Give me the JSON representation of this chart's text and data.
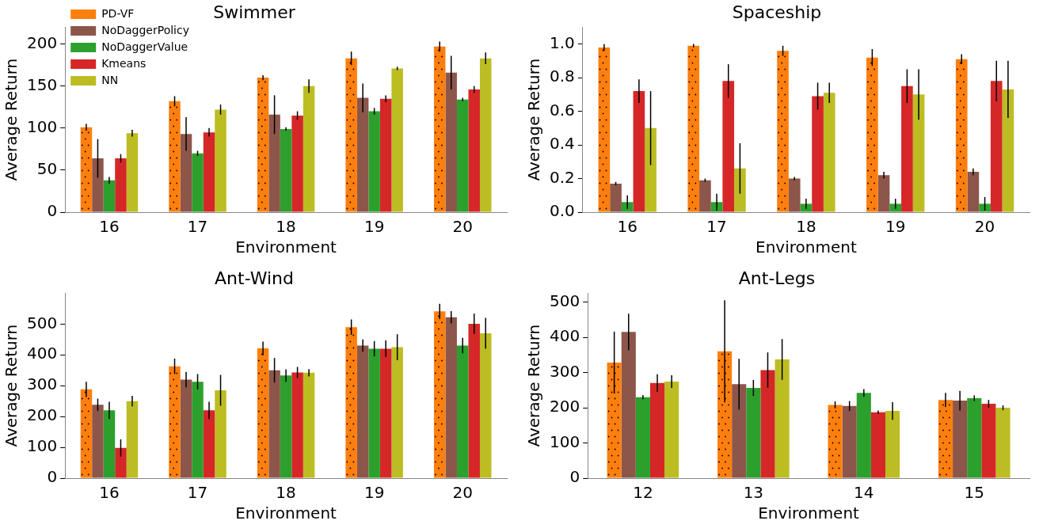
{
  "chart_data": [
    {
      "type": "bar",
      "title": "Swimmer",
      "xlabel": "Environment",
      "ylabel": "Average Return",
      "categories": [
        "16",
        "17",
        "18",
        "19",
        "20"
      ],
      "ylim": [
        0,
        220
      ],
      "yticks": [
        0,
        50,
        100,
        150,
        200
      ],
      "grid": false,
      "legend": "top left",
      "series": [
        {
          "name": "PD-VF",
          "color": "#ff7f0e",
          "values": [
            101,
            132,
            160,
            183,
            197
          ],
          "errors": [
            4,
            6,
            3,
            8,
            6
          ]
        },
        {
          "name": "NoDaggerPolicy",
          "color": "#8c564b",
          "values": [
            64,
            93,
            116,
            136,
            166
          ],
          "errors": [
            23,
            20,
            23,
            17,
            20
          ]
        },
        {
          "name": "NoDaggerValue",
          "color": "#2ca02c",
          "values": [
            38,
            70,
            99,
            120,
            134
          ],
          "errors": [
            4,
            3,
            2,
            4,
            2
          ]
        },
        {
          "name": "Kmeans",
          "color": "#d62728",
          "values": [
            64,
            95,
            115,
            135,
            146
          ],
          "errors": [
            5,
            5,
            5,
            4,
            4
          ]
        },
        {
          "name": "NN",
          "color": "#bcbd22",
          "values": [
            94,
            122,
            150,
            171,
            183
          ],
          "errors": [
            4,
            6,
            8,
            2,
            7
          ]
        }
      ]
    },
    {
      "type": "bar",
      "title": "Spaceship",
      "xlabel": "Environment",
      "ylabel": "Average Return",
      "categories": [
        "16",
        "17",
        "18",
        "19",
        "20"
      ],
      "ylim": [
        0,
        1.1
      ],
      "yticks": [
        {
          "value": 0,
          "label": "0.0"
        },
        {
          "value": 0.2,
          "label": "0.2"
        },
        {
          "value": 0.4,
          "label": "0.4"
        },
        {
          "value": 0.6,
          "label": "0.6"
        },
        {
          "value": 0.8,
          "label": "0.8"
        },
        {
          "value": 1,
          "label": "1.0"
        }
      ],
      "grid": false,
      "series": [
        {
          "color": "#ff7f0e",
          "values": [
            0.98,
            0.99,
            0.96,
            0.92,
            0.91
          ],
          "errors": [
            0.02,
            0.01,
            0.03,
            0.05,
            0.03
          ]
        },
        {
          "color": "#8c564b",
          "values": [
            0.17,
            0.19,
            0.2,
            0.22,
            0.24
          ],
          "errors": [
            0.01,
            0.01,
            0.01,
            0.02,
            0.02
          ]
        },
        {
          "color": "#2ca02c",
          "values": [
            0.06,
            0.06,
            0.05,
            0.05,
            0.05
          ],
          "errors": [
            0.04,
            0.05,
            0.03,
            0.03,
            0.04
          ]
        },
        {
          "color": "#d62728",
          "values": [
            0.72,
            0.78,
            0.69,
            0.75,
            0.78
          ],
          "errors": [
            0.07,
            0.1,
            0.08,
            0.1,
            0.12
          ]
        },
        {
          "color": "#bcbd22",
          "values": [
            0.5,
            0.26,
            0.71,
            0.7,
            0.73
          ],
          "errors": [
            0.22,
            0.15,
            0.06,
            0.15,
            0.17
          ]
        }
      ]
    },
    {
      "type": "bar",
      "title": "Ant-Wind",
      "xlabel": "Environment",
      "ylabel": "Average Return",
      "categories": [
        "16",
        "17",
        "18",
        "19",
        "20"
      ],
      "ylim": [
        0,
        600
      ],
      "yticks": [
        0,
        100,
        200,
        300,
        400,
        500
      ],
      "grid": false,
      "series": [
        {
          "color": "#ff7f0e",
          "values": [
            288,
            363,
            421,
            490,
            541
          ],
          "errors": [
            25,
            25,
            22,
            25,
            25
          ]
        },
        {
          "color": "#8c564b",
          "values": [
            238,
            320,
            350,
            430,
            522
          ],
          "errors": [
            20,
            25,
            40,
            20,
            20
          ]
        },
        {
          "color": "#2ca02c",
          "values": [
            220,
            313,
            333,
            420,
            430
          ],
          "errors": [
            28,
            25,
            20,
            25,
            25
          ]
        },
        {
          "color": "#d62728",
          "values": [
            98,
            220,
            343,
            420,
            501
          ],
          "errors": [
            28,
            28,
            18,
            27,
            33
          ]
        },
        {
          "color": "#bcbd22",
          "values": [
            250,
            285,
            342,
            425,
            470
          ],
          "errors": [
            17,
            50,
            12,
            42,
            50
          ]
        }
      ]
    },
    {
      "type": "bar",
      "title": "Ant-Legs",
      "xlabel": "Environment",
      "ylabel": "Average Return",
      "categories": [
        "12",
        "13",
        "14",
        "15"
      ],
      "ylim": [
        0,
        525
      ],
      "yticks": [
        0,
        100,
        200,
        300,
        400,
        500
      ],
      "grid": false,
      "series": [
        {
          "color": "#ff7f0e",
          "values": [
            328,
            360,
            208,
            222
          ],
          "errors": [
            88,
            145,
            10,
            20
          ]
        },
        {
          "color": "#8c564b",
          "values": [
            415,
            267,
            205,
            220
          ],
          "errors": [
            52,
            72,
            14,
            28
          ]
        },
        {
          "color": "#2ca02c",
          "values": [
            230,
            256,
            242,
            227
          ],
          "errors": [
            6,
            23,
            11,
            8
          ]
        },
        {
          "color": "#d62728",
          "values": [
            270,
            307,
            187,
            211
          ],
          "errors": [
            25,
            50,
            5,
            11
          ]
        },
        {
          "color": "#bcbd22",
          "values": [
            274,
            337,
            191,
            200
          ],
          "errors": [
            18,
            58,
            25,
            7
          ]
        }
      ]
    }
  ]
}
